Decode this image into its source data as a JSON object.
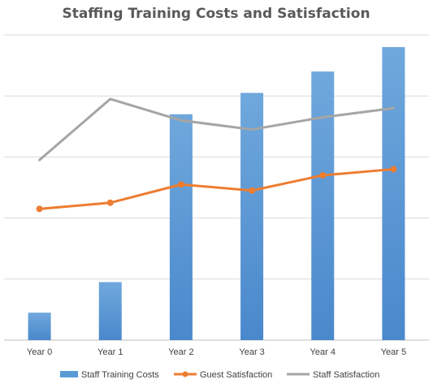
{
  "chart_data": {
    "type": "bar+line",
    "title": "Staffing Training Costs and Satisfaction",
    "categories": [
      "Year 0",
      "Year 1",
      "Year 2",
      "Year 3",
      "Year 4",
      "Year 5"
    ],
    "series": [
      {
        "name": "Staff Training Costs",
        "kind": "bar",
        "values": [
          0.45,
          0.95,
          3.7,
          4.05,
          4.4,
          4.8
        ],
        "color": "#5B9BD5"
      },
      {
        "name": "Guest Satisfaction",
        "kind": "line",
        "marker": "circle",
        "values": [
          2.15,
          2.25,
          2.55,
          2.45,
          2.7,
          2.8
        ],
        "color": "#ED7D31"
      },
      {
        "name": "Staff Satisfaction",
        "kind": "line",
        "marker": "none",
        "values": [
          2.95,
          3.95,
          3.6,
          3.45,
          3.65,
          3.8
        ],
        "color": "#A5A5A5"
      }
    ],
    "ylim": [
      0,
      5
    ],
    "grid": true,
    "y_tick_labels_shown": false,
    "legend_position": "bottom"
  }
}
